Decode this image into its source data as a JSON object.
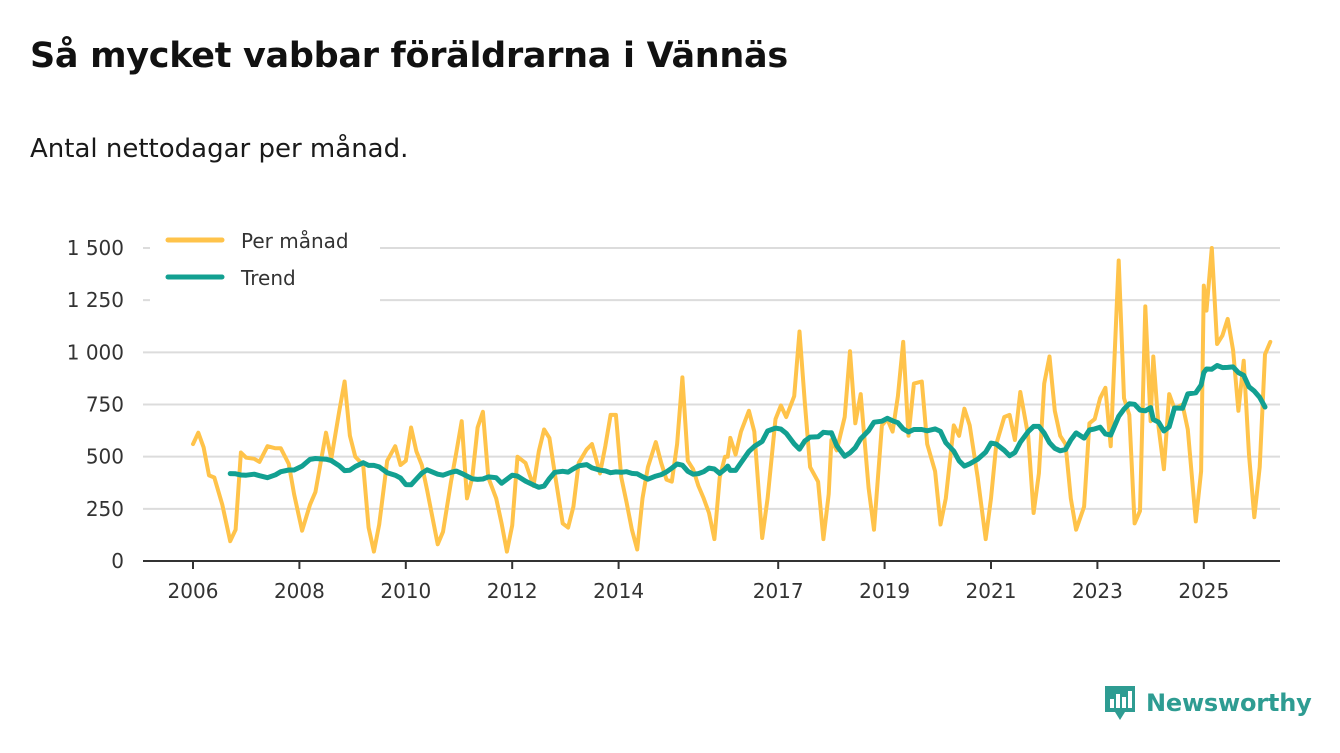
{
  "title": "Så mycket vabbar föräldrarna i Vännäs",
  "subtitle": "Antal nettodagar per månad.",
  "brand": {
    "name": "Newsworthy"
  },
  "colors": {
    "per_manad": "#ffc34a",
    "trend": "#12a091",
    "grid": "#dcdcdc",
    "axis": "#333333"
  },
  "chart_data": {
    "type": "line",
    "title": "Så mycket vabbar föräldrarna i Vännäs",
    "subtitle": "Antal nettodagar per månad.",
    "xlabel": "",
    "ylabel": "",
    "ylim": [
      0,
      1500
    ],
    "yticks": [
      0,
      250,
      500,
      750,
      1000,
      1250,
      1500
    ],
    "ytick_labels": [
      "0",
      "250",
      "500",
      "750",
      "1 000",
      "1 250",
      "1 500"
    ],
    "xlim": [
      2005.5,
      2026.3
    ],
    "xticks": [
      2006,
      2008,
      2010,
      2012,
      2014,
      2017,
      2019,
      2021,
      2023,
      2025
    ],
    "xtick_labels": [
      "2006",
      "2008",
      "2010",
      "2012",
      "2014",
      "2017",
      "2019",
      "2021",
      "2023",
      "2025"
    ],
    "legend_position": "top-left",
    "series": [
      {
        "name": "Per månad",
        "color": "#ffc34a",
        "points": [
          [
            2006.0,
            560
          ],
          [
            2006.1,
            615
          ],
          [
            2006.2,
            545
          ],
          [
            2006.3,
            410
          ],
          [
            2006.4,
            400
          ],
          [
            2006.55,
            270
          ],
          [
            2006.7,
            95
          ],
          [
            2006.8,
            150
          ],
          [
            2006.9,
            520
          ],
          [
            2007.0,
            495
          ],
          [
            2007.15,
            490
          ],
          [
            2007.25,
            475
          ],
          [
            2007.4,
            550
          ],
          [
            2007.55,
            540
          ],
          [
            2007.65,
            540
          ],
          [
            2007.8,
            465
          ],
          [
            2007.9,
            320
          ],
          [
            2008.05,
            145
          ],
          [
            2008.2,
            270
          ],
          [
            2008.3,
            330
          ],
          [
            2008.5,
            615
          ],
          [
            2008.6,
            490
          ],
          [
            2008.75,
            720
          ],
          [
            2008.85,
            860
          ],
          [
            2008.95,
            600
          ],
          [
            2009.05,
            500
          ],
          [
            2009.2,
            460
          ],
          [
            2009.3,
            160
          ],
          [
            2009.4,
            45
          ],
          [
            2009.5,
            175
          ],
          [
            2009.65,
            480
          ],
          [
            2009.8,
            550
          ],
          [
            2009.9,
            460
          ],
          [
            2010.0,
            480
          ],
          [
            2010.1,
            640
          ],
          [
            2010.2,
            525
          ],
          [
            2010.3,
            460
          ],
          [
            2010.4,
            340
          ],
          [
            2010.6,
            80
          ],
          [
            2010.7,
            140
          ],
          [
            2010.85,
            380
          ],
          [
            2010.95,
            520
          ],
          [
            2011.05,
            670
          ],
          [
            2011.15,
            300
          ],
          [
            2011.25,
            400
          ],
          [
            2011.35,
            640
          ],
          [
            2011.45,
            715
          ],
          [
            2011.55,
            400
          ],
          [
            2011.7,
            300
          ],
          [
            2011.8,
            180
          ],
          [
            2011.9,
            45
          ],
          [
            2012.0,
            170
          ],
          [
            2012.1,
            500
          ],
          [
            2012.25,
            470
          ],
          [
            2012.4,
            360
          ],
          [
            2012.5,
            525
          ],
          [
            2012.6,
            630
          ],
          [
            2012.7,
            590
          ],
          [
            2012.8,
            420
          ],
          [
            2012.95,
            180
          ],
          [
            2013.05,
            160
          ],
          [
            2013.15,
            260
          ],
          [
            2013.25,
            470
          ],
          [
            2013.4,
            535
          ],
          [
            2013.5,
            560
          ],
          [
            2013.65,
            420
          ],
          [
            2013.75,
            550
          ],
          [
            2013.85,
            700
          ],
          [
            2013.95,
            700
          ],
          [
            2014.05,
            400
          ],
          [
            2014.15,
            280
          ],
          [
            2014.25,
            150
          ],
          [
            2014.35,
            55
          ],
          [
            2014.45,
            300
          ],
          [
            2014.55,
            450
          ],
          [
            2014.7,
            570
          ],
          [
            2014.8,
            470
          ],
          [
            2014.9,
            390
          ],
          [
            2015.0,
            380
          ],
          [
            2015.1,
            560
          ],
          [
            2015.2,
            880
          ],
          [
            2015.3,
            480
          ],
          [
            2015.4,
            440
          ],
          [
            2015.5,
            360
          ],
          [
            2015.6,
            300
          ],
          [
            2015.7,
            230
          ],
          [
            2015.8,
            105
          ],
          [
            2015.9,
            400
          ],
          [
            2016.0,
            500
          ],
          [
            2016.05,
            500
          ],
          [
            2016.1,
            590
          ],
          [
            2016.2,
            510
          ],
          [
            2016.3,
            620
          ],
          [
            2016.45,
            720
          ],
          [
            2016.55,
            620
          ],
          [
            2016.7,
            110
          ],
          [
            2016.8,
            300
          ],
          [
            2016.95,
            680
          ],
          [
            2017.05,
            745
          ],
          [
            2017.15,
            690
          ],
          [
            2017.3,
            790
          ],
          [
            2017.4,
            1100
          ],
          [
            2017.5,
            760
          ],
          [
            2017.6,
            450
          ],
          [
            2017.75,
            380
          ],
          [
            2017.85,
            105
          ],
          [
            2017.95,
            320
          ],
          [
            2018.0,
            580
          ],
          [
            2018.1,
            530
          ],
          [
            2018.25,
            690
          ],
          [
            2018.35,
            1005
          ],
          [
            2018.45,
            660
          ],
          [
            2018.55,
            800
          ],
          [
            2018.7,
            350
          ],
          [
            2018.8,
            150
          ],
          [
            2018.95,
            650
          ],
          [
            2019.05,
            680
          ],
          [
            2019.15,
            620
          ],
          [
            2019.25,
            790
          ],
          [
            2019.35,
            1050
          ],
          [
            2019.45,
            600
          ],
          [
            2019.55,
            850
          ],
          [
            2019.7,
            860
          ],
          [
            2019.8,
            560
          ],
          [
            2019.95,
            430
          ],
          [
            2020.05,
            175
          ],
          [
            2020.15,
            300
          ],
          [
            2020.3,
            650
          ],
          [
            2020.4,
            600
          ],
          [
            2020.5,
            730
          ],
          [
            2020.6,
            650
          ],
          [
            2020.75,
            400
          ],
          [
            2020.9,
            105
          ],
          [
            2021.0,
            300
          ],
          [
            2021.1,
            560
          ],
          [
            2021.25,
            690
          ],
          [
            2021.35,
            700
          ],
          [
            2021.45,
            580
          ],
          [
            2021.55,
            810
          ],
          [
            2021.7,
            600
          ],
          [
            2021.8,
            230
          ],
          [
            2021.9,
            420
          ],
          [
            2022.0,
            850
          ],
          [
            2022.1,
            980
          ],
          [
            2022.2,
            720
          ],
          [
            2022.3,
            600
          ],
          [
            2022.4,
            560
          ],
          [
            2022.5,
            300
          ],
          [
            2022.6,
            150
          ],
          [
            2022.75,
            260
          ],
          [
            2022.85,
            660
          ],
          [
            2022.95,
            680
          ],
          [
            2023.05,
            780
          ],
          [
            2023.15,
            830
          ],
          [
            2023.25,
            550
          ],
          [
            2023.4,
            1440
          ],
          [
            2023.5,
            780
          ],
          [
            2023.6,
            700
          ],
          [
            2023.7,
            180
          ],
          [
            2023.8,
            240
          ],
          [
            2023.9,
            1220
          ],
          [
            2024.0,
            670
          ],
          [
            2024.05,
            980
          ],
          [
            2024.15,
            640
          ],
          [
            2024.25,
            440
          ],
          [
            2024.35,
            800
          ],
          [
            2024.45,
            730
          ],
          [
            2024.6,
            750
          ],
          [
            2024.7,
            630
          ],
          [
            2024.85,
            190
          ],
          [
            2024.95,
            430
          ],
          [
            2025.0,
            1320
          ],
          [
            2025.05,
            1200
          ],
          [
            2025.15,
            1500
          ],
          [
            2025.25,
            1040
          ],
          [
            2025.35,
            1080
          ],
          [
            2025.45,
            1160
          ],
          [
            2025.55,
            1010
          ],
          [
            2025.65,
            720
          ],
          [
            2025.75,
            960
          ],
          [
            2025.85,
            510
          ],
          [
            2025.95,
            210
          ],
          [
            2026.05,
            450
          ],
          [
            2026.15,
            990
          ],
          [
            2026.25,
            1050
          ]
        ]
      },
      {
        "name": "Trend",
        "color": "#12a091",
        "points": []
      }
    ]
  }
}
